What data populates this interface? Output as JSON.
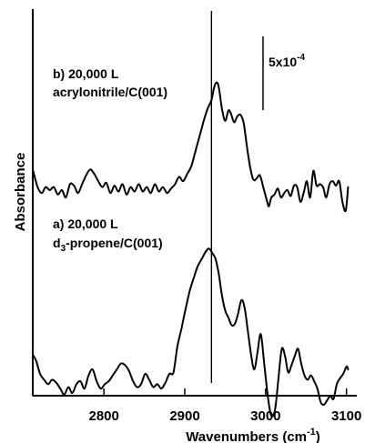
{
  "chart_data": {
    "type": "line",
    "xlabel": "Wavenumbers (cm",
    "xlabel_sup": "-1",
    "xlabel_close": ")",
    "ylabel": "Absorbance",
    "xlim": [
      2712,
      3106
    ],
    "x_ticks": [
      2800,
      2900,
      3000,
      3100
    ],
    "x_tick_labels": [
      "2800",
      "2900",
      "3000",
      "3100"
    ],
    "reference_line_x": 2933,
    "scale_bar": {
      "label": "5x10",
      "label_sup": "-4",
      "absorbance": 0.0005
    },
    "offset_units": "absorbance (1 unit = 1x10^-4)",
    "series": [
      {
        "label_line1": "b) 20,000 L",
        "label_line2": "acrylonitrile/C(001)",
        "x": [
          2712,
          2718,
          2723,
          2728,
          2733,
          2738,
          2743,
          2748,
          2753,
          2758,
          2763,
          2768,
          2773,
          2778,
          2783,
          2788,
          2793,
          2798,
          2803,
          2808,
          2813,
          2818,
          2823,
          2828,
          2833,
          2838,
          2843,
          2848,
          2853,
          2858,
          2863,
          2868,
          2873,
          2878,
          2883,
          2888,
          2893,
          2898,
          2903,
          2908,
          2913,
          2918,
          2923,
          2928,
          2933,
          2936,
          2939,
          2942,
          2946,
          2950,
          2954,
          2957,
          2961,
          2965,
          2969,
          2973,
          2977,
          2981,
          2985,
          2989,
          2993,
          2997,
          3001,
          3004,
          3007,
          3011,
          3015,
          3019,
          3023,
          3027,
          3031,
          3035,
          3039,
          3043,
          3047,
          3051,
          3055,
          3059,
          3063,
          3067,
          3071,
          3075,
          3079,
          3083,
          3087,
          3091,
          3095,
          3099,
          3102
        ],
        "absorbance_e4": [
          0.6,
          -0.6,
          -1.0,
          -0.6,
          -0.8,
          -0.6,
          -1.1,
          -0.8,
          -1.3,
          -0.4,
          -0.5,
          -1.0,
          -0.4,
          0.2,
          0.6,
          0.3,
          -0.2,
          -0.6,
          -0.3,
          -1.0,
          -0.5,
          -0.9,
          -0.4,
          -1.1,
          -0.6,
          -0.9,
          -0.4,
          -0.9,
          -0.6,
          -1.0,
          -0.4,
          -0.9,
          -0.6,
          -1.0,
          -0.7,
          -0.4,
          0.1,
          -0.2,
          0.3,
          0.8,
          1.8,
          2.8,
          3.8,
          4.7,
          5.3,
          6.1,
          6.5,
          6.2,
          4.7,
          3.9,
          4.6,
          4.4,
          3.8,
          4.2,
          4.3,
          3.7,
          2.1,
          0.7,
          -0.1,
          0.0,
          0.2,
          -0.6,
          -1.4,
          -1.9,
          -1.3,
          -1.1,
          -0.7,
          -1.3,
          -1.0,
          -0.8,
          -1.2,
          -0.5,
          -0.6,
          -1.6,
          -1.0,
          -0.2,
          -1.3,
          0.5,
          -0.5,
          -0.4,
          -0.6,
          -1.3,
          -0.4,
          -0.2,
          -0.5,
          -0.2,
          -1.6,
          -2.2,
          -0.6
        ]
      },
      {
        "label_line1": "a) 20,000 L",
        "label_line2": "d3-propene/C(001)",
        "label_line2_html": [
          "d",
          "3",
          "-propene/C(001)"
        ],
        "x": [
          2712,
          2716,
          2721,
          2726,
          2731,
          2736,
          2741,
          2746,
          2751,
          2756,
          2761,
          2766,
          2771,
          2776,
          2781,
          2786,
          2791,
          2796,
          2801,
          2806,
          2811,
          2816,
          2821,
          2826,
          2831,
          2836,
          2841,
          2846,
          2851,
          2856,
          2861,
          2866,
          2871,
          2876,
          2881,
          2886,
          2891,
          2896,
          2901,
          2906,
          2911,
          2916,
          2921,
          2926,
          2930,
          2934,
          2938,
          2942,
          2946,
          2950,
          2954,
          2958,
          2962,
          2966,
          2970,
          2974,
          2978,
          2982,
          2986,
          2990,
          2994,
          2998,
          3002,
          3005,
          3008,
          3012,
          3016,
          3020,
          3024,
          3028,
          3032,
          3036,
          3040,
          3044,
          3048,
          3052,
          3056,
          3060,
          3064,
          3068,
          3072,
          3076,
          3080,
          3084,
          3088,
          3092,
          3096,
          3100,
          3102
        ],
        "absorbance_e4": [
          -1.6,
          -2.0,
          -2.9,
          -3.3,
          -3.6,
          -3.3,
          -3.5,
          -3.9,
          -4.3,
          -3.8,
          -4.2,
          -3.6,
          -3.4,
          -3.9,
          -3.0,
          -2.6,
          -3.4,
          -3.9,
          -3.6,
          -3.4,
          -3.0,
          -2.6,
          -2.2,
          -2.3,
          -2.7,
          -3.4,
          -3.8,
          -3.6,
          -2.9,
          -3.3,
          -3.8,
          -3.6,
          -3.9,
          -3.5,
          -2.9,
          -2.8,
          -1.0,
          0.2,
          1.5,
          2.7,
          3.6,
          4.4,
          4.9,
          5.4,
          5.6,
          5.3,
          4.9,
          3.9,
          2.4,
          1.4,
          0.9,
          0.4,
          0.5,
          1.2,
          2.1,
          1.6,
          0.0,
          -1.6,
          -2.6,
          -1.4,
          -0.2,
          -2.1,
          -4.1,
          -5.3,
          -5.8,
          -5.2,
          -3.1,
          -1.2,
          -1.7,
          -2.8,
          -2.3,
          -1.7,
          -1.2,
          -2.2,
          -3.0,
          -3.3,
          -3.0,
          -3.4,
          -3.9,
          -4.8,
          -5.0,
          -4.7,
          -4.4,
          -4.6,
          -3.6,
          -3.2,
          -2.9,
          -2.4,
          -2.6
        ]
      }
    ]
  }
}
